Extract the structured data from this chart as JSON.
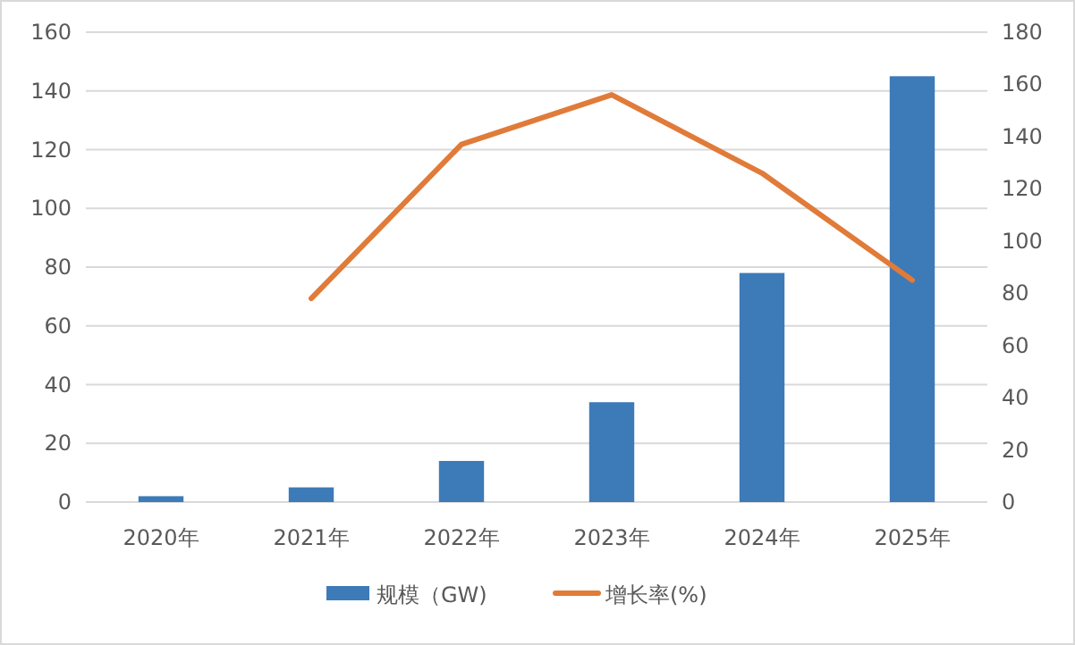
{
  "chart_data": {
    "type": "bar",
    "categories": [
      "2020年",
      "2021年",
      "2022年",
      "2023年",
      "2024年",
      "2025年"
    ],
    "series": [
      {
        "name": "规模（GW)",
        "color": "#3d7ab8",
        "values": [
          2,
          5,
          14,
          34,
          78,
          145
        ]
      },
      {
        "name": "增长率(%)",
        "type": "line",
        "axis": "y2",
        "color": "#e07b39",
        "values": [
          null,
          78,
          137,
          156,
          126,
          85
        ]
      }
    ],
    "ylim": [
      0,
      160
    ],
    "yticks": [
      0,
      20,
      40,
      60,
      80,
      100,
      120,
      140,
      160
    ],
    "y2lim": [
      0,
      180
    ],
    "y2ticks": [
      0,
      20,
      40,
      60,
      80,
      100,
      120,
      140,
      160,
      180
    ],
    "grid": "y",
    "legend": "bottom"
  }
}
